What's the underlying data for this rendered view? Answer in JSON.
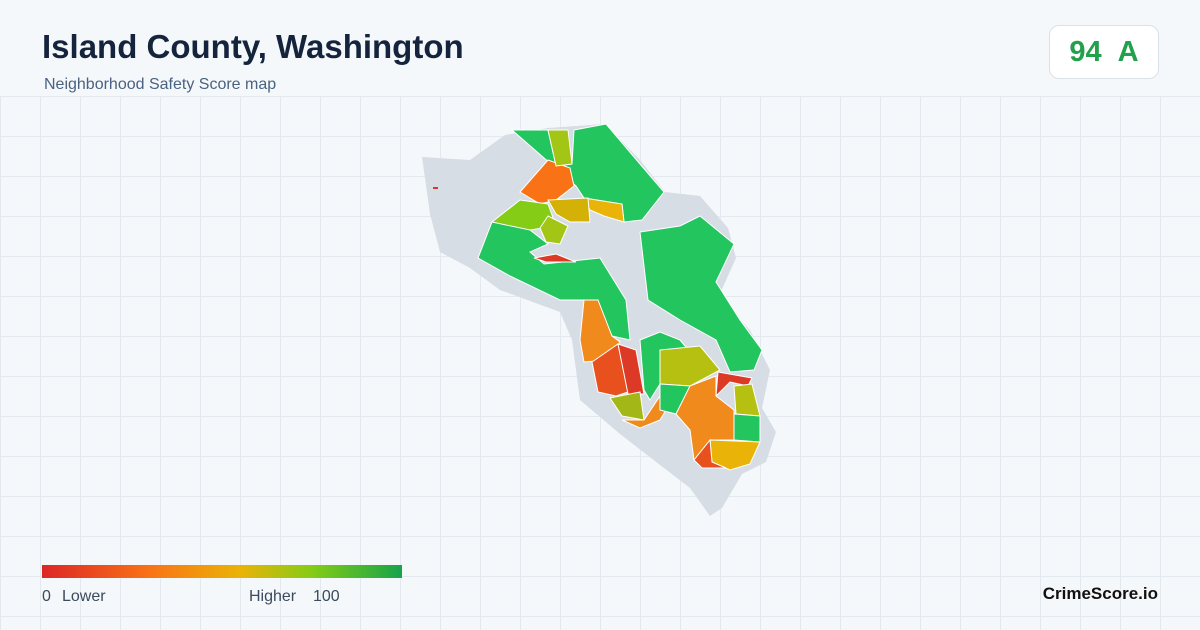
{
  "header": {
    "title": "Island County, Washington",
    "subtitle": "Neighborhood Safety Score map"
  },
  "score": {
    "value": 94,
    "grade": "A"
  },
  "legend": {
    "min": 0,
    "min_label": "Lower",
    "max_label": "Higher",
    "max": 100
  },
  "brand": "CrimeScore.io"
}
